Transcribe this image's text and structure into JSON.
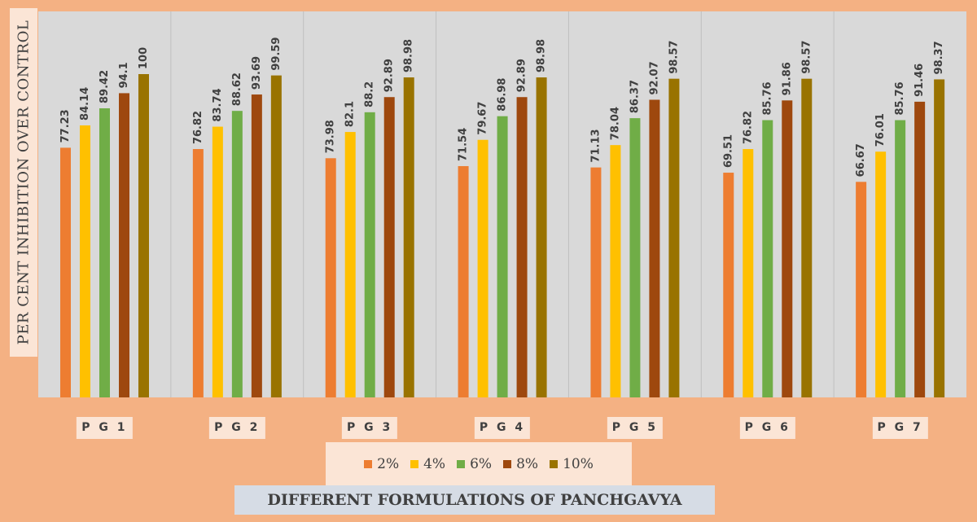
{
  "chart_data": {
    "type": "bar",
    "ylabel": "PER CENT INHIBITION OVER CONTROL",
    "xlabel": "DIFFERENT FORMULATIONS OF PANCHGAVYA",
    "categories": [
      "P G 1",
      "P G 2",
      "P G 3",
      "P G 4",
      "P G 5",
      "P G 6",
      "P G 7"
    ],
    "series": [
      {
        "name": "2%",
        "color": "#ED7D31",
        "values": [
          77.23,
          76.82,
          73.98,
          71.54,
          71.13,
          69.51,
          66.67
        ]
      },
      {
        "name": "4%",
        "color": "#FFC000",
        "values": [
          84.14,
          83.74,
          82.1,
          79.67,
          78.04,
          76.82,
          76.01
        ]
      },
      {
        "name": "6%",
        "color": "#70AD47",
        "values": [
          89.42,
          88.62,
          88.2,
          86.98,
          86.37,
          85.76,
          85.76
        ]
      },
      {
        "name": "8%",
        "color": "#9E480E",
        "values": [
          94.1,
          93.69,
          92.89,
          92.89,
          92.07,
          91.86,
          91.46
        ]
      },
      {
        "name": "10%",
        "color": "#997300",
        "values": [
          100,
          99.59,
          98.98,
          98.98,
          98.57,
          98.57,
          98.37
        ]
      }
    ],
    "data_labels": [
      [
        "77.23",
        "84.14",
        "89.42",
        "94.1",
        "100"
      ],
      [
        "76.82",
        "83.74",
        "88.62",
        "93.69",
        "99.59"
      ],
      [
        "73.98",
        "82.1",
        "88.2",
        "92.89",
        "98.98"
      ],
      [
        "71.54",
        "79.67",
        "86.98",
        "92.89",
        "98.98"
      ],
      [
        "71.13",
        "78.04",
        "86.37",
        "92.07",
        "98.57"
      ],
      [
        "69.51",
        "76.82",
        "85.76",
        "91.86",
        "98.57"
      ],
      [
        "66.67",
        "76.01",
        "85.76",
        "91.46",
        "98.37"
      ]
    ],
    "ylim": [
      0,
      100
    ],
    "grid": "vertical-separators",
    "legend": "bottom-center",
    "plot_background": "#D9D9D9"
  }
}
